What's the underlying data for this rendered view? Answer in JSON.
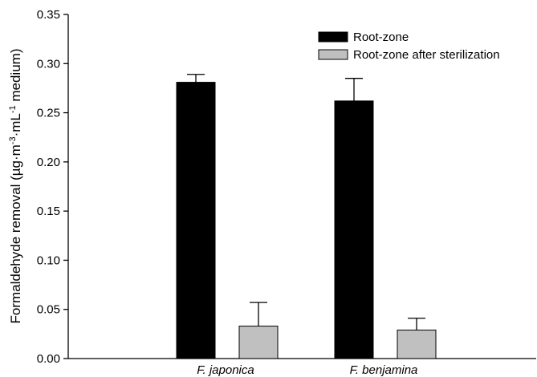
{
  "chart_data": {
    "type": "bar",
    "categories": [
      "F. japonica",
      "F. benjamina"
    ],
    "series": [
      {
        "name": "Root-zone",
        "values": [
          0.281,
          0.262
        ],
        "errors": [
          0.008,
          0.023
        ],
        "color": "#000000"
      },
      {
        "name": "Root-zone after sterilization",
        "values": [
          0.033,
          0.029
        ],
        "errors": [
          0.024,
          0.012
        ],
        "color": "#c0c0c0"
      }
    ],
    "ylabel": "Formaldehyde removal (µg·m⁻³·mL⁻¹ medium)",
    "ylabel_parts": [
      "Formaldehyde removal (µg·m",
      "-3",
      "·mL",
      "-1",
      " medium)"
    ],
    "ylim": [
      0,
      0.35
    ],
    "yticks": [
      "0.00",
      "0.05",
      "0.10",
      "0.15",
      "0.20",
      "0.25",
      "0.30",
      "0.35"
    ],
    "legend_position": "top-right",
    "grid": false
  }
}
